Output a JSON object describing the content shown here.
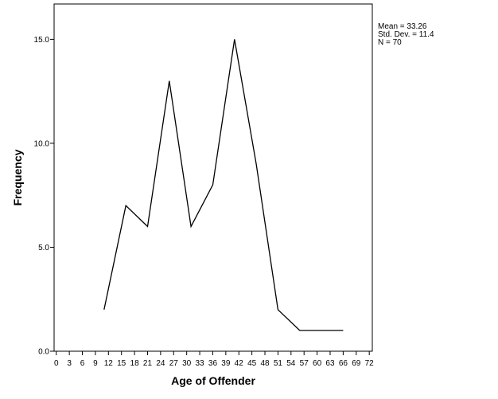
{
  "chart_data": {
    "type": "line",
    "title": "",
    "xlabel": "Age of Offender",
    "ylabel": "Frequency",
    "x_ticks": [
      "0",
      "3",
      "6",
      "9",
      "12",
      "15",
      "18",
      "21",
      "24",
      "27",
      "30",
      "33",
      "36",
      "39",
      "42",
      "45",
      "48",
      "51",
      "54",
      "57",
      "60",
      "63",
      "66",
      "69",
      "72"
    ],
    "y_ticks": [
      "0.0",
      "5.0",
      "10.0",
      "15.0"
    ],
    "xlim": [
      -0.5,
      72.7
    ],
    "ylim": [
      0,
      16.7
    ],
    "grid": false,
    "series": [
      {
        "x": [
          11,
          16,
          21,
          26,
          31,
          36,
          41,
          46,
          51,
          56,
          61,
          66
        ],
        "y": [
          2,
          7,
          6,
          13,
          6,
          8,
          15,
          9,
          2,
          1,
          1,
          1
        ]
      }
    ],
    "line_color": "#000000",
    "stats": {
      "mean": "Mean = 33.26",
      "std_dev": "Std. Dev. = 11.4",
      "n": "N = 70"
    }
  }
}
